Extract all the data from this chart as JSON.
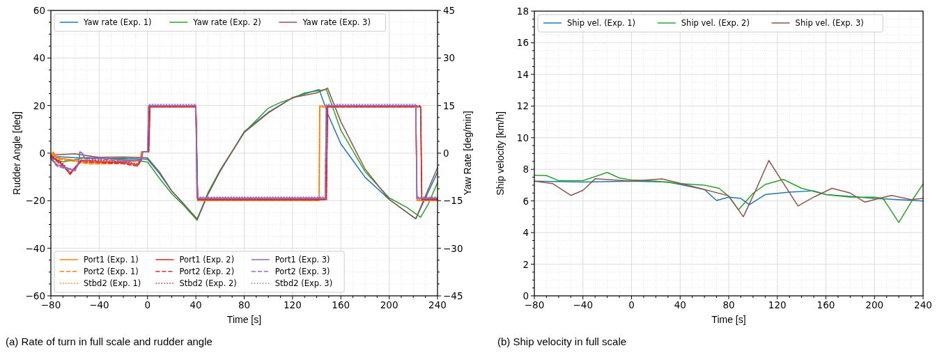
{
  "chart_data": [
    {
      "type": "line",
      "xlabel": "Time [s]",
      "ylabel": "Rudder Angle [deg]",
      "y2label": "Yaw Rate [deg/min]",
      "xlim": [
        -80,
        240
      ],
      "xticks": [
        -80,
        -40,
        0,
        40,
        80,
        120,
        160,
        200,
        240
      ],
      "ylim": [
        -60,
        60
      ],
      "yticks": [
        -60,
        -40,
        -20,
        0,
        20,
        40,
        60
      ],
      "y2lim": [
        -45,
        45
      ],
      "y2ticks": [
        -45,
        -30,
        -15,
        0,
        15,
        30,
        45
      ],
      "grid": true,
      "legend": "top left",
      "annotations": [
        "(a) Rate of turn in full scale and rudder angle"
      ],
      "series": [
        {
          "name": "Yaw rate (Exp. 1)",
          "color": "#1f77b4",
          "axis": "y2",
          "line_style": "solid",
          "x": [
            -80,
            -60,
            -40,
            -20,
            0,
            10,
            20,
            30,
            41,
            50,
            60,
            80,
            100,
            120,
            142,
            150,
            160,
            180,
            200,
            222,
            240
          ],
          "values": [
            -1.0,
            -1.4,
            -1.7,
            -1.6,
            -1.9,
            -6.5,
            -11.9,
            -16.0,
            -21.1,
            -13.0,
            -5.8,
            6.8,
            12.9,
            17.5,
            20.1,
            11.6,
            2.9,
            -7.6,
            -14.6,
            -20.7,
            -6.0
          ]
        },
        {
          "name": "Yaw rate (Exp. 2)",
          "color": "#2ca02c",
          "axis": "y2",
          "line_style": "solid",
          "x": [
            -80,
            -70,
            -50,
            -20,
            0,
            10,
            20,
            30,
            41,
            50,
            60,
            80,
            100,
            110,
            120,
            130,
            140,
            148,
            160,
            180,
            200,
            215,
            226,
            232,
            240
          ],
          "values": [
            -1.5,
            -2.8,
            -1.3,
            -1.9,
            -2.8,
            -8.0,
            -12.8,
            -16.5,
            -21.1,
            -12.5,
            -5.4,
            6.5,
            14.2,
            16.0,
            17.3,
            19.0,
            19.6,
            20.1,
            7.2,
            -5.8,
            -14.1,
            -17.2,
            -20.2,
            -16.3,
            -9.3
          ]
        },
        {
          "name": "Yaw rate (Exp. 3)",
          "color": "#8c564b",
          "axis": "y2",
          "line_style": "solid",
          "x": [
            -80,
            -60,
            -40,
            -20,
            0,
            10,
            20,
            30,
            41,
            50,
            60,
            80,
            100,
            120,
            140,
            149,
            160,
            180,
            200,
            222,
            240
          ],
          "values": [
            -0.6,
            -0.2,
            -1.3,
            -1.2,
            -1.5,
            -6.0,
            -11.9,
            -16.0,
            -20.7,
            -13.0,
            -5.6,
            6.5,
            12.7,
            17.5,
            19.0,
            20.5,
            9.9,
            -5.0,
            -14.6,
            -20.7,
            -4.5
          ]
        },
        {
          "name": "Port1 (Exp. 1)",
          "color": "#ff7f0e",
          "axis": "y",
          "line_style": "solid",
          "x": [
            -80,
            -78,
            -75,
            -60,
            -50,
            -30,
            -10,
            -6,
            -5,
            0.5,
            1,
            40,
            41.5,
            142,
            142.5,
            222,
            223,
            240
          ],
          "values": [
            -1,
            0.5,
            -2,
            -3,
            -4,
            -4,
            -3,
            -3,
            0.5,
            0.5,
            19.5,
            19.5,
            -20,
            -20,
            19.5,
            19.5,
            -20,
            -20
          ]
        },
        {
          "name": "Port2 (Exp. 1)",
          "color": "#ff7f0e",
          "axis": "y",
          "line_style": "dashed",
          "x": [
            -80,
            -78,
            -75,
            -60,
            -50,
            -30,
            -10,
            -6,
            -5,
            0.5,
            1,
            40,
            41.5,
            142,
            142.5,
            222,
            223,
            240
          ],
          "values": [
            -1.5,
            0,
            -2.5,
            -3.5,
            -4.5,
            -4.5,
            -3.5,
            -3,
            0.5,
            0.5,
            19.5,
            19.5,
            -20,
            -20,
            19.5,
            19.5,
            -20,
            -20
          ]
        },
        {
          "name": "Stbd2 (Exp. 1)",
          "color": "#ff7f0e",
          "axis": "y",
          "line_style": "dotted",
          "x": [
            -80,
            -78,
            -75,
            -60,
            -50,
            -30,
            -10,
            -6,
            -5,
            0.5,
            1,
            40,
            41.5,
            142,
            142.5,
            222,
            223,
            240
          ],
          "values": [
            -1,
            0.5,
            -2,
            -3,
            -4,
            -4,
            -3,
            -3,
            0.5,
            0.5,
            20,
            20,
            -19.5,
            -19.5,
            20,
            20,
            -19.5,
            -19.5
          ]
        },
        {
          "name": "Port1 (Exp. 2)",
          "color": "#d62728",
          "axis": "y",
          "line_style": "solid",
          "x": [
            -80,
            -70,
            -64,
            -60,
            -55,
            -40,
            -20,
            -8,
            -5,
            -4,
            1,
            2,
            40,
            41.5,
            148,
            149,
            226,
            227,
            240
          ],
          "values": [
            -1,
            -5,
            -9,
            -6,
            -3,
            -3.5,
            -4,
            -5,
            -2,
            0.5,
            0.5,
            19.5,
            19.5,
            -19.5,
            -19.5,
            19.5,
            19.5,
            -19.5,
            -19.5
          ]
        },
        {
          "name": "Port2 (Exp. 2)",
          "color": "#d62728",
          "axis": "y",
          "line_style": "dashed",
          "x": [
            -80,
            -70,
            -64,
            -60,
            -55,
            -40,
            -20,
            -8,
            -5,
            -4,
            1,
            2,
            40,
            41.5,
            148,
            149,
            226,
            227,
            240
          ],
          "values": [
            -1.5,
            -5.5,
            -8.5,
            -6.5,
            -3.5,
            -4,
            -4.5,
            -5.5,
            -2.5,
            0.5,
            0.5,
            19.5,
            19.5,
            -19.5,
            -19.5,
            19.5,
            19.5,
            -19.5,
            -19.5
          ]
        },
        {
          "name": "Stbd2 (Exp. 2)",
          "color": "#d62728",
          "axis": "y",
          "line_style": "dotted",
          "x": [
            -80,
            -70,
            -64,
            -60,
            -55,
            -40,
            -20,
            -8,
            -5,
            -4,
            1,
            2,
            40,
            41.5,
            148,
            149,
            226,
            227,
            240
          ],
          "values": [
            -1,
            -4.5,
            -8,
            -6,
            -3,
            -3,
            -3.5,
            -4.5,
            -2,
            0.5,
            0.5,
            20,
            20,
            -19,
            -19,
            20,
            20,
            -19,
            -19
          ]
        },
        {
          "name": "Port1 (Exp. 3)",
          "color": "#9467bd",
          "axis": "y",
          "line_style": "solid",
          "x": [
            -80,
            -75,
            -68,
            -60,
            -57,
            -56,
            -54,
            -52,
            -40,
            -20,
            -5,
            -4,
            0,
            1,
            40,
            41,
            147,
            148,
            222,
            223,
            240
          ],
          "values": [
            -2,
            -5,
            -6,
            -7.5,
            -4,
            0.5,
            0,
            -2,
            -2,
            -3,
            -3,
            0.5,
            0.5,
            20,
            20,
            -19,
            -19,
            20,
            20,
            -19,
            -19
          ]
        },
        {
          "name": "Port2 (Exp. 3)",
          "color": "#9467bd",
          "axis": "y",
          "line_style": "dashed",
          "x": [
            -80,
            -75,
            -68,
            -60,
            -57,
            -56,
            -54,
            -52,
            -40,
            -20,
            -5,
            -4,
            0,
            1,
            40,
            41,
            147,
            148,
            222,
            223,
            240
          ],
          "values": [
            -2.5,
            -5.5,
            -6.5,
            -7,
            -4.5,
            0.5,
            0,
            -2.5,
            -2.5,
            -3.5,
            -3,
            0.5,
            0.5,
            20,
            20,
            -19,
            -19,
            20,
            20,
            -19,
            -19
          ]
        },
        {
          "name": "Stbd2 (Exp. 3)",
          "color": "#9467bd",
          "axis": "y",
          "line_style": "dotted",
          "x": [
            -80,
            -75,
            -68,
            -60,
            -57,
            -56,
            -54,
            -52,
            -40,
            -20,
            -5,
            -4,
            0,
            1,
            40,
            41,
            147,
            148,
            222,
            223,
            240
          ],
          "values": [
            -2,
            -4.5,
            -6,
            -7,
            -4,
            0.5,
            0,
            -2,
            -2,
            -3,
            -3,
            0.5,
            0.5,
            20.5,
            20.5,
            -18.5,
            -18.5,
            20.5,
            20.5,
            -18.5,
            -18.5
          ]
        }
      ]
    },
    {
      "type": "line",
      "xlabel": "Time [s]",
      "ylabel": "Ship velocity [km/h]",
      "xlim": [
        -80,
        240
      ],
      "xticks": [
        -80,
        -40,
        0,
        40,
        80,
        120,
        160,
        200,
        240
      ],
      "ylim": [
        0,
        18
      ],
      "yticks": [
        0,
        2,
        4,
        6,
        8,
        10,
        12,
        14,
        16,
        18
      ],
      "grid": true,
      "legend": "top left",
      "annotations": [
        "(b) Ship velocity in full scale"
      ],
      "series": [
        {
          "name": "Ship vel. (Exp. 1)",
          "color": "#1f77b4",
          "line_style": "solid",
          "x": [
            -80,
            -40,
            0,
            30,
            40,
            60,
            70,
            80,
            90,
            97,
            110,
            130,
            150,
            160,
            200,
            240
          ],
          "values": [
            7.25,
            7.2,
            7.25,
            7.2,
            7.04,
            6.72,
            6.03,
            6.24,
            6.16,
            5.76,
            6.4,
            6.56,
            6.64,
            6.4,
            6.16,
            6.0
          ]
        },
        {
          "name": "Ship vel. (Exp. 2)",
          "color": "#2ca02c",
          "line_style": "solid",
          "x": [
            -80,
            -70,
            -60,
            -40,
            -20,
            -10,
            0,
            20,
            40,
            60,
            72,
            80,
            88,
            100,
            110,
            125,
            140,
            160,
            180,
            200,
            207,
            220,
            232,
            240
          ],
          "values": [
            7.63,
            7.6,
            7.28,
            7.28,
            7.8,
            7.45,
            7.33,
            7.25,
            7.1,
            7.0,
            6.8,
            6.29,
            5.44,
            6.48,
            7.04,
            7.36,
            6.8,
            6.4,
            6.24,
            6.24,
            6.16,
            4.64,
            6.16,
            7.07
          ]
        },
        {
          "name": "Ship vel. (Exp. 3)",
          "color": "#8c564b",
          "line_style": "solid",
          "x": [
            -80,
            -65,
            -50,
            -40,
            -30,
            0,
            25,
            40,
            60,
            80,
            92,
            102,
            113,
            125,
            137,
            150,
            165,
            180,
            192,
            200,
            214,
            230,
            240
          ],
          "values": [
            7.25,
            7.1,
            6.35,
            6.67,
            7.4,
            7.25,
            7.39,
            7.12,
            6.72,
            6.32,
            5.0,
            6.64,
            8.56,
            7.12,
            5.68,
            6.24,
            6.8,
            6.5,
            5.92,
            6.08,
            6.35,
            6.08,
            6.16
          ]
        }
      ]
    }
  ]
}
